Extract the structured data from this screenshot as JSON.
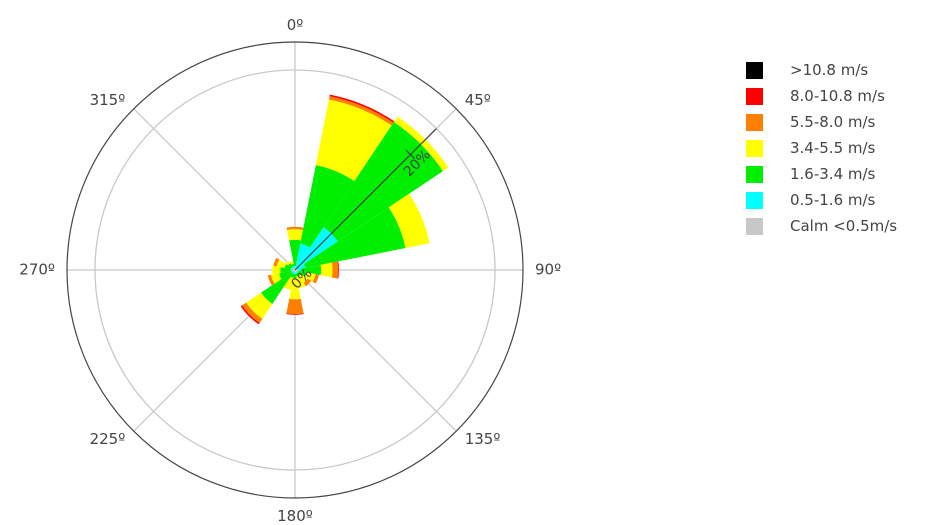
{
  "chart_data": {
    "type": "windrose",
    "title": "",
    "direction_labels": [
      "0º",
      "45º",
      "90º",
      "135º",
      "180º",
      "225º",
      "270º",
      "315º"
    ],
    "direction_angles": [
      0,
      45,
      90,
      135,
      180,
      225,
      270,
      315
    ],
    "radial_tick_labels": [
      "0%",
      "20%"
    ],
    "radial_ticks": [
      0,
      20
    ],
    "radial_max": 24.5,
    "radial_axis_angle": 45,
    "bar_width_deg": 22.5,
    "speed_bins": [
      {
        "name": ">10.8 m/s",
        "color": "#000000"
      },
      {
        "name": "8.0-10.8 m/s",
        "color": "#ff0000"
      },
      {
        "name": "5.5-8.0 m/s",
        "color": "#ff7f00"
      },
      {
        "name": "3.4-5.5 m/s",
        "color": "#ffff00"
      },
      {
        "name": "1.6-3.4 m/s",
        "color": "#00ee00"
      },
      {
        "name": "0.5-1.6 m/s",
        "color": "#00ffff"
      },
      {
        "name": "Calm <0.5m/s",
        "color": "#c8c8c8"
      }
    ],
    "series_order_inner_to_outer": [
      "Calm <0.5m/s",
      "0.5-1.6 m/s",
      "1.6-3.4 m/s",
      "3.4-5.5 m/s",
      "5.5-8.0 m/s",
      "8.0-10.8 m/s",
      ">10.8 m/s"
    ],
    "directions": [
      0,
      22.5,
      45,
      67.5,
      90,
      112.5,
      135,
      157.5,
      180,
      202.5,
      225,
      247.5,
      270,
      292.5,
      315,
      337.5
    ],
    "series": [
      {
        "name": "Calm <0.5m/s",
        "values": [
          0.3,
          0.3,
          0.3,
          0.3,
          0.3,
          0.3,
          0.3,
          0.3,
          0.3,
          0.3,
          0.3,
          0.3,
          0.3,
          0.3,
          0.3,
          0.3
        ]
      },
      {
        "name": "0.5-1.6 m/s",
        "values": [
          0.2,
          3.0,
          6.0,
          1.0,
          0.4,
          0.2,
          0.2,
          0.2,
          0.2,
          0.2,
          0.2,
          0.2,
          0.2,
          0.2,
          0.2,
          0.2
        ]
      },
      {
        "name": "1.6-3.4 m/s",
        "values": [
          3.2,
          9.8,
          15.5,
          12.5,
          2.5,
          1.0,
          0.4,
          0.3,
          0.5,
          0.5,
          4.5,
          1.5,
          1.3,
          0.8,
          0.5,
          0.3
        ]
      },
      {
        "name": "3.4-5.5 m/s",
        "values": [
          1.3,
          8.2,
          0.8,
          3.0,
          1.4,
          1.1,
          1.0,
          1.5,
          2.6,
          1.5,
          2.2,
          1.0,
          1.0,
          1.0,
          0.4,
          0.3
        ]
      },
      {
        "name": "5.5-8.0 m/s",
        "values": [
          0.3,
          0.4,
          0.0,
          0.0,
          0.7,
          0.4,
          0.5,
          0.0,
          1.8,
          0.0,
          0.6,
          0.4,
          0.0,
          0.4,
          0.0,
          0.0
        ]
      },
      {
        "name": "8.0-10.8 m/s",
        "values": [
          0.0,
          0.2,
          0.0,
          0.0,
          0.1,
          0.0,
          0.0,
          0.0,
          0.1,
          0.0,
          0.2,
          0.0,
          0.0,
          0.0,
          0.0,
          0.0
        ]
      },
      {
        "name": ">10.8 m/s",
        "values": [
          0.0,
          0.0,
          0.0,
          0.0,
          0.0,
          0.0,
          0.0,
          0.0,
          0.0,
          0.0,
          0.0,
          0.0,
          0.0,
          0.0,
          0.0,
          0.0
        ]
      }
    ]
  }
}
